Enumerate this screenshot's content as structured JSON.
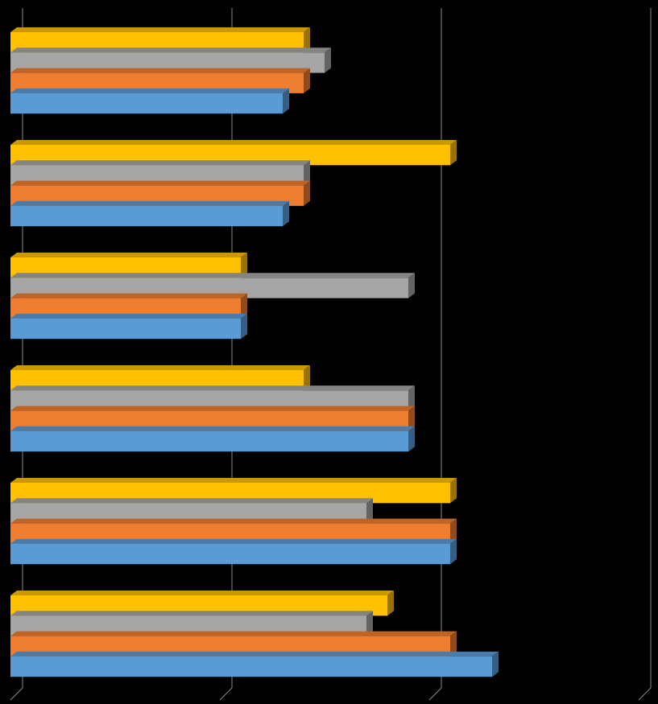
{
  "chart_data": {
    "type": "bar3d_horizontal",
    "categories": [
      null,
      null,
      null,
      null,
      null,
      null
    ],
    "xlim": [
      0,
      3
    ],
    "xticks": [
      0,
      1,
      2,
      3
    ],
    "grid": true,
    "series": [
      {
        "color": "#5b9bd5",
        "values": [
          1.3,
          1.3,
          1.1,
          1.9,
          2.1,
          2.3
        ]
      },
      {
        "color": "#ed7d31",
        "values": [
          1.4,
          1.4,
          1.1,
          1.9,
          2.1,
          2.1
        ]
      },
      {
        "color": "#a5a5a5",
        "values": [
          1.5,
          1.4,
          1.9,
          1.9,
          1.7,
          1.7
        ]
      },
      {
        "color": "#ffc000",
        "values": [
          1.4,
          2.1,
          1.1,
          1.4,
          2.1,
          1.8
        ]
      }
    ]
  }
}
